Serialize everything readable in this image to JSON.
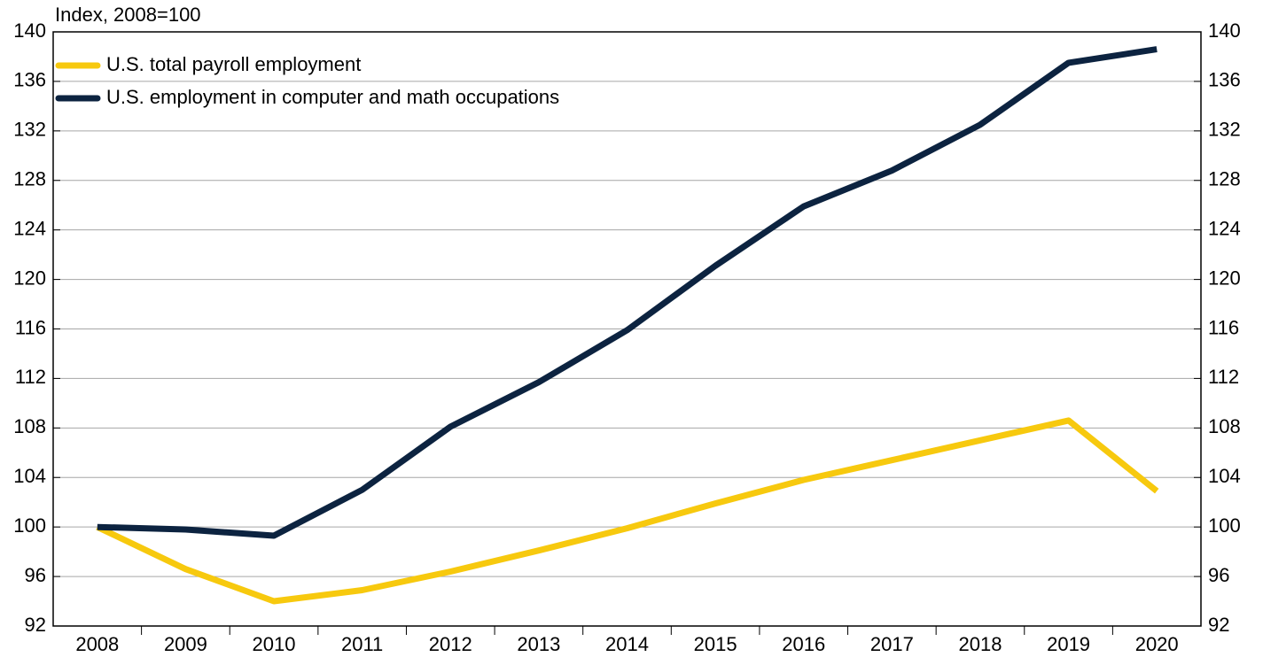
{
  "chart_data": {
    "type": "line",
    "axis_label": "Index, 2008=100",
    "categories": [
      "2008",
      "2009",
      "2010",
      "2011",
      "2012",
      "2013",
      "2014",
      "2015",
      "2016",
      "2017",
      "2018",
      "2019",
      "2020"
    ],
    "series": [
      {
        "name": "U.S. total payroll employment",
        "color": "#f7c90e",
        "values": [
          100,
          96.6,
          94.0,
          94.9,
          96.4,
          98.1,
          99.9,
          101.9,
          103.8,
          105.4,
          107.0,
          108.6,
          102.9
        ]
      },
      {
        "name": "U.S. employment in computer and math occupations",
        "color": "#0c2340",
        "values": [
          100,
          99.8,
          99.3,
          103.0,
          108.1,
          111.7,
          115.9,
          121.1,
          125.9,
          128.8,
          132.5,
          137.5,
          138.6
        ]
      }
    ],
    "ylim": [
      92,
      140
    ],
    "yticks": [
      92,
      96,
      100,
      104,
      108,
      112,
      116,
      120,
      124,
      128,
      132,
      136,
      140
    ],
    "y2lim": [
      92,
      140
    ],
    "y2ticks": [
      92,
      96,
      100,
      104,
      108,
      112,
      116,
      120,
      124,
      128,
      132,
      136,
      140
    ],
    "grid": true,
    "legend": "upper left"
  }
}
